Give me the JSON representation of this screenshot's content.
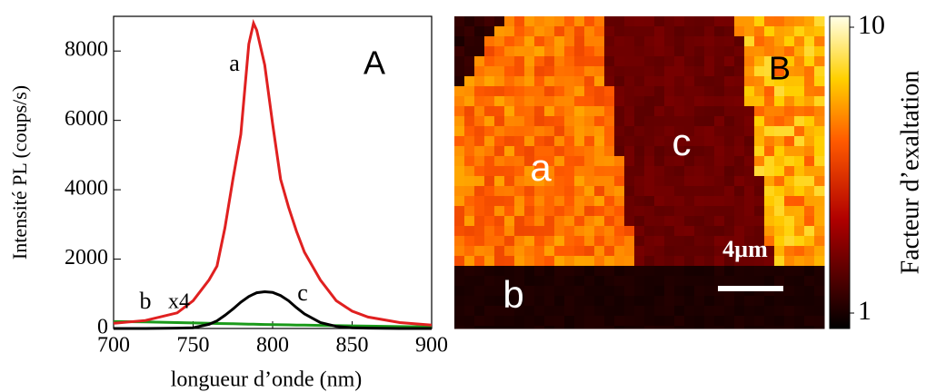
{
  "chart_data": [
    {
      "type": "line",
      "xlabel": "longueur d’onde  (nm)",
      "ylabel": "Intensité PL (coups/s)",
      "panel_label": "A",
      "annotations": [
        "x4"
      ],
      "x": [
        700,
        720,
        740,
        750,
        760,
        765,
        770,
        775,
        780,
        785,
        788,
        790,
        795,
        800,
        805,
        810,
        815,
        820,
        830,
        840,
        850,
        860,
        880,
        900
      ],
      "series": [
        {
          "name": "a",
          "color": "#e02020",
          "values": [
            150,
            230,
            450,
            800,
            1400,
            1800,
            2900,
            4300,
            5600,
            8200,
            8800,
            8600,
            7600,
            5900,
            4300,
            3500,
            2800,
            2200,
            1400,
            800,
            500,
            330,
            170,
            100
          ]
        },
        {
          "name": "c",
          "color": "#000000",
          "values": [
            0,
            0,
            10,
            20,
            120,
            220,
            380,
            560,
            760,
            920,
            990,
            1030,
            1060,
            1040,
            950,
            800,
            600,
            420,
            170,
            60,
            20,
            10,
            0,
            0
          ]
        },
        {
          "name": "b",
          "color": "#1a9a1a",
          "values": [
            200,
            190,
            170,
            160,
            150,
            145,
            140,
            135,
            130,
            125,
            122,
            120,
            116,
            112,
            108,
            104,
            100,
            96,
            90,
            82,
            75,
            68,
            55,
            45
          ]
        }
      ],
      "xlim": [
        700,
        900
      ],
      "xticks": [
        700,
        750,
        800,
        850,
        900
      ],
      "ylim": [
        0,
        9000
      ],
      "yticks": [
        0,
        2000,
        4000,
        6000,
        8000
      ]
    },
    {
      "type": "image",
      "panel_label": "B",
      "region_labels": [
        "a",
        "b",
        "c"
      ],
      "scale_bar": "4µm",
      "colorbar_label": "Facteur d’exaltation",
      "colorbar_lim": [
        1,
        10
      ],
      "colorbar_ticks": [
        1,
        10
      ],
      "colorbar_log": true
    }
  ]
}
